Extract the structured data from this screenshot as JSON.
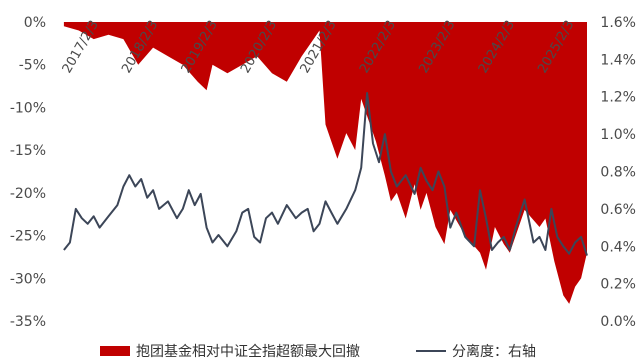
{
  "chart_data": {
    "type": "area",
    "title": "",
    "x_tick_labels": [
      "2017/2/3",
      "2018/2/3",
      "2019/2/3",
      "2020/2/3",
      "2021/2/3",
      "2022/2/3",
      "2023/2/3",
      "2024/2/3",
      "2025/2/3"
    ],
    "left_axis": {
      "ylim": [
        -35,
        0
      ],
      "unit": "%",
      "tick_labels": [
        "0%",
        "-5%",
        "-10%",
        "-15%",
        "-20%",
        "-25%",
        "-30%",
        "-35%"
      ]
    },
    "right_axis": {
      "ylim": [
        0,
        1.6
      ],
      "unit": "%",
      "tick_labels": [
        "1.6%",
        "1.4%",
        "1.2%",
        "1.0%",
        "0.8%",
        "0.6%",
        "0.4%",
        "0.2%",
        "0.0%"
      ]
    },
    "series": [
      {
        "name": "抱团基金相对中证全指超额最大回撤",
        "type": "area",
        "axis": "left",
        "color": "#c00000",
        "x": [
          2017.0,
          2017.25,
          2017.5,
          2017.75,
          2018.0,
          2018.25,
          2018.5,
          2018.75,
          2019.0,
          2019.25,
          2019.4,
          2019.5,
          2019.75,
          2020.0,
          2020.25,
          2020.5,
          2020.75,
          2021.0,
          2021.1,
          2021.2,
          2021.3,
          2021.4,
          2021.5,
          2021.6,
          2021.75,
          2021.9,
          2022.0,
          2022.1,
          2022.25,
          2022.4,
          2022.5,
          2022.6,
          2022.75,
          2022.9,
          2023.0,
          2023.1,
          2023.25,
          2023.4,
          2023.5,
          2023.75,
          2024.0,
          2024.1,
          2024.25,
          2024.4,
          2024.5,
          2024.75,
          2025.0,
          2025.1,
          2025.25,
          2025.4,
          2025.5,
          2025.6,
          2025.7,
          2025.8
        ],
        "y": [
          -0.5,
          -1.0,
          -2.0,
          -1.5,
          -2.0,
          -5.0,
          -3.0,
          -4.0,
          -5.0,
          -7.0,
          -8.0,
          -5.0,
          -6.0,
          -5.0,
          -4.0,
          -6.0,
          -7.0,
          -4.0,
          -3.0,
          -2.0,
          -1.0,
          -12.0,
          -14.0,
          -16.0,
          -13.0,
          -15.0,
          -9.0,
          -11.0,
          -14.0,
          -18.0,
          -21.0,
          -20.0,
          -23.0,
          -19.0,
          -22.0,
          -20.0,
          -24.0,
          -26.0,
          -22.0,
          -25.0,
          -27.0,
          -29.0,
          -24.0,
          -26.0,
          -27.0,
          -22.0,
          -24.0,
          -23.0,
          -28.0,
          -32.0,
          -33.0,
          -31.0,
          -30.0,
          -27.0
        ]
      },
      {
        "name": "分离度：右轴",
        "type": "line",
        "axis": "right",
        "color": "#3c4658",
        "x": [
          2017.0,
          2017.1,
          2017.2,
          2017.3,
          2017.4,
          2017.5,
          2017.6,
          2017.75,
          2017.9,
          2018.0,
          2018.1,
          2018.2,
          2018.3,
          2018.4,
          2018.5,
          2018.6,
          2018.75,
          2018.9,
          2019.0,
          2019.1,
          2019.2,
          2019.3,
          2019.4,
          2019.5,
          2019.6,
          2019.75,
          2019.9,
          2020.0,
          2020.1,
          2020.2,
          2020.3,
          2020.4,
          2020.5,
          2020.6,
          2020.75,
          2020.9,
          2021.0,
          2021.1,
          2021.2,
          2021.3,
          2021.4,
          2021.5,
          2021.6,
          2021.75,
          2021.9,
          2022.0,
          2022.1,
          2022.2,
          2022.3,
          2022.4,
          2022.5,
          2022.6,
          2022.75,
          2022.9,
          2023.0,
          2023.1,
          2023.2,
          2023.3,
          2023.4,
          2023.5,
          2023.6,
          2023.75,
          2023.9,
          2024.0,
          2024.1,
          2024.2,
          2024.3,
          2024.4,
          2024.5,
          2024.6,
          2024.75,
          2024.9,
          2025.0,
          2025.1,
          2025.2,
          2025.3,
          2025.4,
          2025.5,
          2025.6,
          2025.7,
          2025.8
        ],
        "y": [
          0.38,
          0.42,
          0.6,
          0.55,
          0.52,
          0.56,
          0.5,
          0.56,
          0.62,
          0.72,
          0.78,
          0.72,
          0.76,
          0.66,
          0.7,
          0.6,
          0.64,
          0.55,
          0.6,
          0.7,
          0.62,
          0.68,
          0.5,
          0.42,
          0.46,
          0.4,
          0.48,
          0.58,
          0.6,
          0.45,
          0.42,
          0.55,
          0.58,
          0.52,
          0.62,
          0.55,
          0.58,
          0.6,
          0.48,
          0.52,
          0.64,
          0.58,
          0.52,
          0.6,
          0.7,
          0.82,
          1.22,
          0.95,
          0.85,
          1.0,
          0.8,
          0.72,
          0.78,
          0.68,
          0.82,
          0.75,
          0.7,
          0.8,
          0.72,
          0.5,
          0.58,
          0.45,
          0.4,
          0.7,
          0.55,
          0.38,
          0.42,
          0.45,
          0.38,
          0.5,
          0.65,
          0.42,
          0.45,
          0.38,
          0.6,
          0.45,
          0.4,
          0.36,
          0.42,
          0.45,
          0.35
        ]
      }
    ],
    "legend": {
      "placement": "bottom",
      "entries": [
        "抱团基金相对中证全指超额最大回撤",
        "分离度：右轴"
      ]
    },
    "grid": false
  }
}
